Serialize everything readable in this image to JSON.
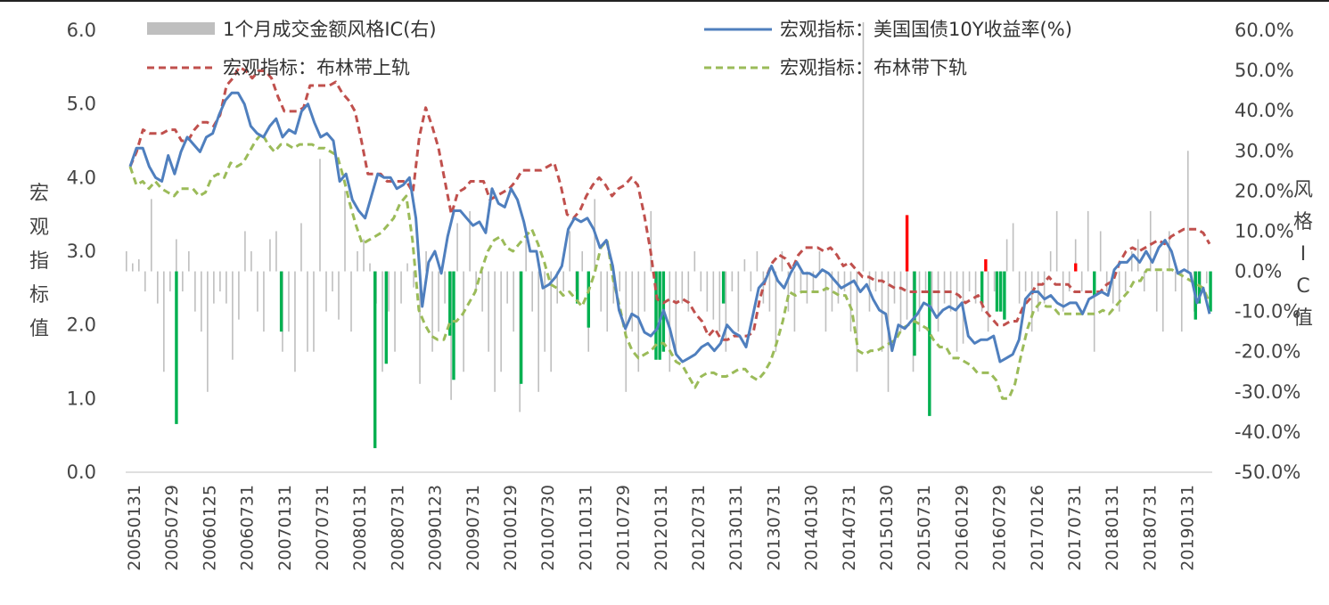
{
  "chart_data": {
    "type": "line",
    "y_left": {
      "min": 0,
      "max": 6,
      "ticks": [
        "0.0",
        "1.0",
        "2.0",
        "3.0",
        "4.0",
        "5.0",
        "6.0"
      ],
      "title_chars": [
        "宏",
        "观",
        "指",
        "标",
        "值"
      ]
    },
    "y_right": {
      "min": -50,
      "max": 60,
      "ticks": [
        "-50.0%",
        "-40.0%",
        "-30.0%",
        "-20.0%",
        "-10.0%",
        "0.0%",
        "10.0%",
        "20.0%",
        "30.0%",
        "40.0%",
        "50.0%",
        "60.0%"
      ],
      "title_chars": [
        "风",
        "格",
        "I",
        "C",
        "值"
      ]
    },
    "x_ticks": [
      "20050131",
      "20050729",
      "20060125",
      "20060731",
      "20070131",
      "20070731",
      "20080131",
      "20080731",
      "20090123",
      "20090731",
      "20100129",
      "20100730",
      "20110131",
      "20110729",
      "20120131",
      "20120731",
      "20130131",
      "20130731",
      "20140130",
      "20140731",
      "20150130",
      "20150731",
      "20160129",
      "20160729",
      "20170126",
      "20170731",
      "20180131",
      "20180731",
      "20190131"
    ],
    "legend": {
      "ic": "1个月成交金额风格IC(右)",
      "yield": "宏观指标：美国国债10Y收益率(%)",
      "upper": "宏观指标：布林带上轨",
      "lower": "宏观指标：布林带下轨"
    },
    "colors": {
      "ic": "#bfbfbf",
      "yield": "#4f7fbe",
      "upper": "#c0504d",
      "lower": "#9bbb59",
      "sig_neg": "#00b050",
      "sig_pos": "#ff0000"
    },
    "series": [
      {
        "name": "宏观指标：美国国债10Y收益率(%)",
        "values": [
          4.15,
          4.4,
          4.4,
          4.15,
          4.0,
          3.95,
          4.3,
          4.05,
          4.35,
          4.55,
          4.45,
          4.35,
          4.55,
          4.6,
          4.85,
          5.05,
          5.15,
          5.15,
          5.0,
          4.7,
          4.6,
          4.55,
          4.7,
          4.8,
          4.55,
          4.65,
          4.6,
          4.9,
          5.0,
          4.75,
          4.55,
          4.6,
          4.5,
          3.95,
          4.05,
          3.7,
          3.55,
          3.45,
          3.75,
          4.05,
          4.0,
          4.0,
          3.85,
          3.9,
          4.0,
          3.45,
          2.25,
          2.85,
          3.0,
          2.7,
          3.2,
          3.55,
          3.55,
          3.45,
          3.35,
          3.4,
          3.25,
          3.85,
          3.65,
          3.6,
          3.85,
          3.7,
          3.4,
          3.0,
          3.0,
          2.5,
          2.55,
          2.65,
          2.8,
          3.3,
          3.45,
          3.4,
          3.45,
          3.3,
          3.05,
          3.15,
          2.8,
          2.2,
          1.95,
          2.15,
          2.1,
          1.9,
          1.85,
          1.95,
          2.2,
          1.95,
          1.6,
          1.5,
          1.55,
          1.6,
          1.7,
          1.75,
          1.65,
          1.75,
          2.0,
          1.9,
          1.85,
          1.7,
          2.1,
          2.5,
          2.6,
          2.8,
          2.6,
          2.5,
          2.7,
          2.85,
          2.7,
          2.7,
          2.65,
          2.75,
          2.7,
          2.6,
          2.5,
          2.55,
          2.6,
          2.45,
          2.55,
          2.35,
          2.2,
          2.15,
          1.65,
          2.0,
          1.95,
          2.05,
          2.15,
          2.3,
          2.25,
          2.1,
          2.2,
          2.25,
          2.2,
          2.3,
          1.85,
          1.75,
          1.8,
          1.8,
          1.85,
          1.5,
          1.55,
          1.6,
          1.8,
          2.35,
          2.45,
          2.45,
          2.35,
          2.4,
          2.3,
          2.25,
          2.3,
          2.3,
          2.15,
          2.35,
          2.4,
          2.45,
          2.4,
          2.75,
          2.85,
          2.85,
          2.95,
          2.85,
          3.0,
          2.85,
          3.05,
          3.15,
          3.0,
          2.7,
          2.75,
          2.7,
          2.3,
          2.5,
          2.15
        ]
      },
      {
        "name": "宏观指标：布林带上轨",
        "values": [
          4.15,
          4.35,
          4.65,
          4.6,
          4.6,
          4.6,
          4.65,
          4.65,
          4.5,
          4.5,
          4.65,
          4.75,
          4.75,
          4.7,
          4.85,
          5.25,
          5.35,
          5.5,
          5.45,
          5.35,
          5.45,
          5.45,
          5.35,
          5.1,
          4.9,
          4.9,
          4.9,
          4.95,
          5.25,
          5.25,
          5.25,
          5.25,
          5.3,
          5.15,
          5.05,
          4.9,
          4.5,
          4.05,
          4.05,
          4.05,
          3.95,
          3.95,
          3.95,
          3.95,
          3.8,
          4.55,
          4.95,
          4.7,
          4.4,
          3.95,
          3.5,
          3.8,
          3.85,
          3.95,
          3.95,
          3.95,
          3.7,
          3.75,
          3.8,
          3.85,
          3.95,
          4.1,
          4.1,
          4.1,
          4.1,
          4.15,
          4.2,
          3.9,
          3.5,
          3.45,
          3.55,
          3.75,
          3.9,
          4.0,
          3.9,
          3.75,
          3.85,
          3.9,
          4.0,
          3.9,
          3.5,
          3.0,
          2.35,
          2.3,
          2.35,
          2.3,
          2.35,
          2.3,
          2.15,
          2.05,
          1.85,
          1.95,
          1.8,
          1.8,
          1.85,
          1.85,
          1.85,
          1.9,
          2.35,
          2.65,
          2.85,
          2.95,
          2.9,
          2.75,
          2.95,
          3.05,
          3.05,
          3.05,
          3.0,
          3.05,
          2.95,
          2.8,
          2.85,
          2.75,
          2.65,
          2.65,
          2.6,
          2.6,
          2.55,
          2.5,
          2.5,
          2.45,
          2.45,
          2.45,
          2.45,
          2.45,
          2.45,
          2.45,
          2.45,
          2.4,
          2.3,
          2.35,
          2.4,
          2.2,
          2.1,
          2.0,
          2.0,
          2.05,
          2.05,
          2.25,
          2.35,
          2.55,
          2.55,
          2.65,
          2.55,
          2.55,
          2.55,
          2.45,
          2.45,
          2.45,
          2.45,
          2.45,
          2.55,
          2.6,
          2.85,
          3.0,
          3.05,
          3.0,
          3.05,
          3.1,
          3.15,
          3.1,
          3.2,
          3.25,
          3.3,
          3.3,
          3.3,
          3.25,
          3.1
        ]
      },
      {
        "name": "宏观指标：布林带下轨",
        "values": [
          4.15,
          3.9,
          3.95,
          3.85,
          3.95,
          3.85,
          3.8,
          3.75,
          3.85,
          3.85,
          3.85,
          3.75,
          3.8,
          4.0,
          4.05,
          4.0,
          4.2,
          4.15,
          4.2,
          4.35,
          4.5,
          4.6,
          4.45,
          4.35,
          4.45,
          4.45,
          4.4,
          4.45,
          4.45,
          4.45,
          4.4,
          4.4,
          4.35,
          4.3,
          4.0,
          3.65,
          3.35,
          3.1,
          3.15,
          3.2,
          3.25,
          3.35,
          3.45,
          3.65,
          3.75,
          3.15,
          2.2,
          2.0,
          1.85,
          1.8,
          1.8,
          2.05,
          2.05,
          2.15,
          2.3,
          2.45,
          2.75,
          3.0,
          3.15,
          3.2,
          3.05,
          3.0,
          3.1,
          3.2,
          3.3,
          3.1,
          2.85,
          2.55,
          2.5,
          2.4,
          2.45,
          2.35,
          2.25,
          2.45,
          2.7,
          3.05,
          3.15,
          2.6,
          2.25,
          1.85,
          1.65,
          1.55,
          1.6,
          1.65,
          1.75,
          1.75,
          1.65,
          1.5,
          1.45,
          1.3,
          1.15,
          1.3,
          1.35,
          1.35,
          1.3,
          1.3,
          1.35,
          1.4,
          1.4,
          1.3,
          1.25,
          1.35,
          1.5,
          1.75,
          2.05,
          2.45,
          2.4,
          2.45,
          2.45,
          2.45,
          2.45,
          2.5,
          2.45,
          2.4,
          2.4,
          2.2,
          1.65,
          1.6,
          1.65,
          1.65,
          1.7,
          1.75,
          1.8,
          1.95,
          2.0,
          2.05,
          2.0,
          1.95,
          1.8,
          1.7,
          1.7,
          1.55,
          1.55,
          1.5,
          1.45,
          1.35,
          1.35,
          1.35,
          1.25,
          1.0,
          1.0,
          1.2,
          1.6,
          1.95,
          2.2,
          2.3,
          2.25,
          2.25,
          2.15,
          2.15,
          2.15,
          2.15,
          2.15,
          2.15,
          2.15,
          2.2,
          2.15,
          2.25,
          2.35,
          2.45,
          2.6,
          2.6,
          2.75,
          2.75,
          2.75,
          2.75,
          2.75,
          2.7,
          2.65,
          2.6,
          2.55,
          2.5,
          2.3
        ]
      },
      {
        "name": "1个月成交金额风格IC(右)",
        "type": "bar",
        "values": [
          5,
          2,
          3,
          -5,
          18,
          -8,
          -25,
          -5,
          8,
          -5,
          5,
          -10,
          -15,
          -30,
          -8,
          -5,
          -8,
          -22,
          -12,
          10,
          5,
          -10,
          -15,
          8,
          10,
          -20,
          -15,
          -25,
          12,
          -20,
          -20,
          28,
          -10,
          -5,
          -12,
          20,
          -15,
          5,
          8,
          2,
          -8,
          -25,
          -10,
          -20,
          -8,
          2,
          -4,
          -28,
          5,
          -20,
          -15,
          -8,
          -32,
          12,
          -25,
          15,
          -5,
          -10,
          -20,
          -30,
          -25,
          -8,
          -15,
          -35,
          8,
          -10,
          -30,
          -20,
          -25,
          -8,
          -5,
          10,
          -5,
          5,
          -20,
          18,
          -10,
          -15,
          -8,
          -5,
          -30,
          -15,
          -25,
          -10,
          15,
          -15,
          -10,
          -25,
          -20,
          -8,
          -10,
          5,
          -5,
          -10,
          -12,
          -15,
          -20,
          -5,
          -15,
          3,
          -5,
          5,
          -8,
          -10,
          -20,
          5,
          -10,
          -15,
          -5,
          -8,
          -5,
          5,
          -15,
          -10,
          -8,
          -5,
          -15,
          -25,
          62,
          -10,
          -5,
          -20,
          -30,
          -8,
          -15,
          -12,
          -25,
          -15,
          -5,
          -10,
          -15,
          -8,
          -10,
          -20,
          -18,
          -5,
          -8,
          -10,
          -15,
          -5,
          -10,
          8,
          12,
          -8,
          -5,
          -15,
          -10,
          -8,
          5,
          15,
          -10,
          -5,
          8,
          -5,
          15,
          -20,
          10,
          -5,
          -8,
          -10,
          -5,
          5,
          8,
          -5,
          15,
          -10,
          -15,
          10,
          -5,
          -15,
          30,
          -10,
          -5,
          -3
        ]
      }
    ],
    "highlight_bars": [
      {
        "index": 6,
        "value": -38,
        "sign": "neg"
      },
      {
        "index": 34,
        "value": -15,
        "sign": "neg"
      },
      {
        "index": 59,
        "value": -44,
        "sign": "neg"
      },
      {
        "index": 62,
        "value": -23,
        "sign": "neg"
      },
      {
        "index": 79,
        "value": -16,
        "sign": "neg"
      },
      {
        "index": 80,
        "value": -27,
        "sign": "neg"
      },
      {
        "index": 98,
        "value": -28,
        "sign": "neg"
      },
      {
        "index": 113,
        "value": -8,
        "sign": "neg"
      },
      {
        "index": 116,
        "value": -14,
        "sign": "neg"
      },
      {
        "index": 134,
        "value": -22,
        "sign": "neg"
      },
      {
        "index": 135,
        "value": -22,
        "sign": "neg"
      },
      {
        "index": 136,
        "value": -20,
        "sign": "neg"
      },
      {
        "index": 152,
        "value": -8,
        "sign": "neg"
      },
      {
        "index": 201,
        "value": 14,
        "sign": "pos"
      },
      {
        "index": 203,
        "value": -21,
        "sign": "neg"
      },
      {
        "index": 207,
        "value": -36,
        "sign": "neg"
      },
      {
        "index": 221,
        "value": -8,
        "sign": "neg"
      },
      {
        "index": 222,
        "value": 3,
        "sign": "pos"
      },
      {
        "index": 225,
        "value": -10,
        "sign": "neg"
      },
      {
        "index": 226,
        "value": -10,
        "sign": "neg"
      },
      {
        "index": 227,
        "value": -12,
        "sign": "neg"
      },
      {
        "index": 246,
        "value": 2,
        "sign": "pos"
      },
      {
        "index": 251,
        "value": -6,
        "sign": "neg"
      },
      {
        "index": 278,
        "value": -12,
        "sign": "neg"
      },
      {
        "index": 279,
        "value": -8,
        "sign": "neg"
      },
      {
        "index": 282,
        "value": -10,
        "sign": "neg"
      }
    ],
    "legend_placement": "top"
  }
}
